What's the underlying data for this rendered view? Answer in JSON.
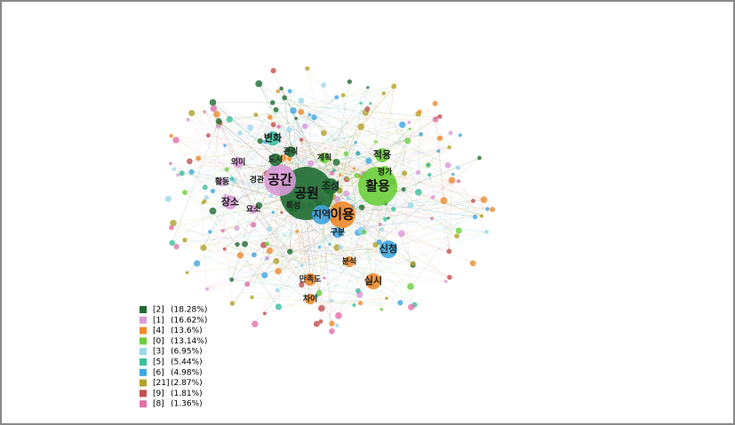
{
  "legend": [
    {
      "id": "[2]",
      "share": "(18.28%)",
      "color": "#1f6b32"
    },
    {
      "id": "[1]",
      "share": "(16.62%)",
      "color": "#d99ad6"
    },
    {
      "id": "[4]",
      "share": "(13.6%)",
      "color": "#ef8a2a"
    },
    {
      "id": "[0]",
      "share": "(13.14%)",
      "color": "#6ccf3c"
    },
    {
      "id": "[3]",
      "share": "(6.95%)",
      "color": "#9ad8ee"
    },
    {
      "id": "[5]",
      "share": "(5.44%)",
      "color": "#3dbf9e"
    },
    {
      "id": "[6]",
      "share": "(4.98%)",
      "color": "#3ea6df"
    },
    {
      "id": "[21]",
      "share": "(2.87%)",
      "color": "#b3a12a"
    },
    {
      "id": "[9]",
      "share": "(1.81%)",
      "color": "#c2504e"
    },
    {
      "id": "[8]",
      "share": "(1.36%)",
      "color": "#e36fa9"
    }
  ],
  "nodes": [
    {
      "label": "공원",
      "group": 0
    },
    {
      "label": "공간",
      "group": 1
    },
    {
      "label": "경관",
      "group": 1
    },
    {
      "label": "활용",
      "group": 3
    },
    {
      "label": "이용",
      "group": 2
    },
    {
      "label": "지역",
      "group": 6
    },
    {
      "label": "장소",
      "group": 1
    },
    {
      "label": "도시",
      "group": 0
    },
    {
      "label": "의미",
      "group": 1
    },
    {
      "label": "변화",
      "group": 5
    },
    {
      "label": "계획",
      "group": 3
    },
    {
      "label": "적용",
      "group": 3
    },
    {
      "label": "평가",
      "group": 3
    },
    {
      "label": "구분",
      "group": 6
    },
    {
      "label": "신청",
      "group": 6
    },
    {
      "label": "만족도",
      "group": 2
    },
    {
      "label": "차이",
      "group": 2
    },
    {
      "label": "실시",
      "group": 2
    },
    {
      "label": "조성",
      "group": 0
    },
    {
      "label": "관리",
      "group": 0
    },
    {
      "label": "요소",
      "group": 1
    },
    {
      "label": "특성",
      "group": 0
    },
    {
      "label": "활동",
      "group": 1
    },
    {
      "label": "분석",
      "group": 2
    }
  ]
}
